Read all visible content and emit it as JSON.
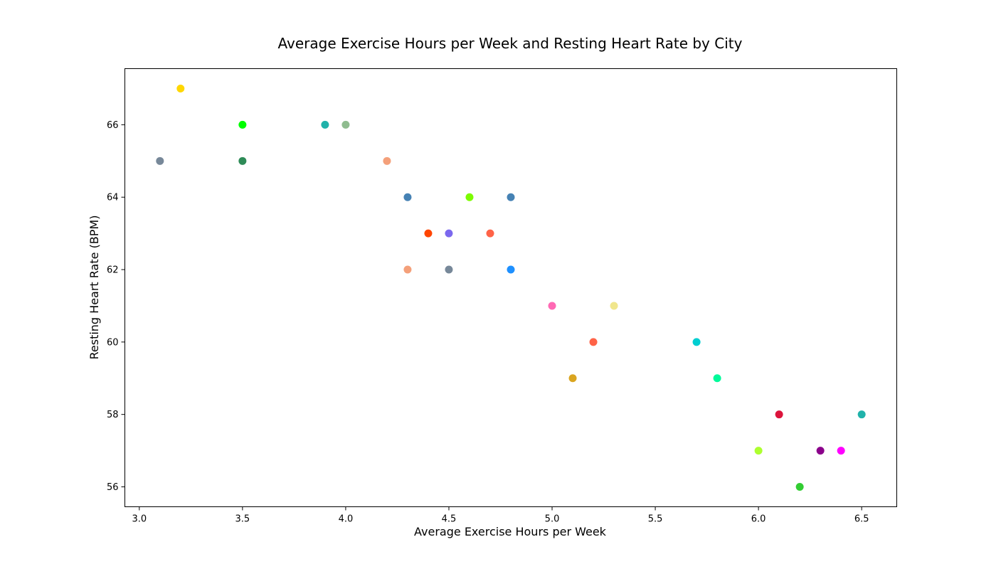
{
  "chart_data": {
    "type": "scatter",
    "title": "Average Exercise Hours per Week and Resting Heart Rate by City",
    "xlabel": "Average Exercise Hours per Week",
    "ylabel": "Resting Heart Rate (BPM)",
    "xlim": [
      2.93,
      6.67
    ],
    "ylim": [
      55.45,
      67.55
    ],
    "xticks": [
      "3.0",
      "3.5",
      "4.0",
      "4.5",
      "5.0",
      "5.5",
      "6.0",
      "6.5"
    ],
    "yticks": [
      "56",
      "58",
      "60",
      "62",
      "64",
      "66"
    ],
    "grid": false,
    "points": [
      {
        "x": 3.2,
        "y": 67,
        "color": "#FFD700"
      },
      {
        "x": 3.5,
        "y": 66,
        "color": "#00FF00"
      },
      {
        "x": 3.9,
        "y": 66,
        "color": "#20B2AA"
      },
      {
        "x": 4.0,
        "y": 66,
        "color": "#8FBC8F"
      },
      {
        "x": 3.1,
        "y": 65,
        "color": "#778899"
      },
      {
        "x": 3.5,
        "y": 65,
        "color": "#2E8B57"
      },
      {
        "x": 4.2,
        "y": 65,
        "color": "#F4A07A"
      },
      {
        "x": 4.3,
        "y": 64,
        "color": "#4682B4"
      },
      {
        "x": 4.6,
        "y": 64,
        "color": "#7CFC00"
      },
      {
        "x": 4.8,
        "y": 64,
        "color": "#4682B4"
      },
      {
        "x": 4.4,
        "y": 63,
        "color": "#FF4500"
      },
      {
        "x": 4.5,
        "y": 63,
        "color": "#7B68EE"
      },
      {
        "x": 4.7,
        "y": 63,
        "color": "#FF6347"
      },
      {
        "x": 4.3,
        "y": 62,
        "color": "#F4A07A"
      },
      {
        "x": 4.5,
        "y": 62,
        "color": "#778899"
      },
      {
        "x": 4.8,
        "y": 62,
        "color": "#1E90FF"
      },
      {
        "x": 5.0,
        "y": 61,
        "color": "#FF69B4"
      },
      {
        "x": 5.3,
        "y": 61,
        "color": "#F0E68C"
      },
      {
        "x": 5.2,
        "y": 60,
        "color": "#FF6347"
      },
      {
        "x": 5.7,
        "y": 60,
        "color": "#00CED1"
      },
      {
        "x": 5.1,
        "y": 59,
        "color": "#DAA520"
      },
      {
        "x": 5.8,
        "y": 59,
        "color": "#00FA9A"
      },
      {
        "x": 6.1,
        "y": 58,
        "color": "#DC143C"
      },
      {
        "x": 6.5,
        "y": 58,
        "color": "#20B2AA"
      },
      {
        "x": 6.0,
        "y": 57,
        "color": "#ADFF2F"
      },
      {
        "x": 6.3,
        "y": 57,
        "color": "#8B008B"
      },
      {
        "x": 6.4,
        "y": 57,
        "color": "#FF00FF"
      },
      {
        "x": 6.2,
        "y": 56,
        "color": "#32CD32"
      }
    ]
  }
}
